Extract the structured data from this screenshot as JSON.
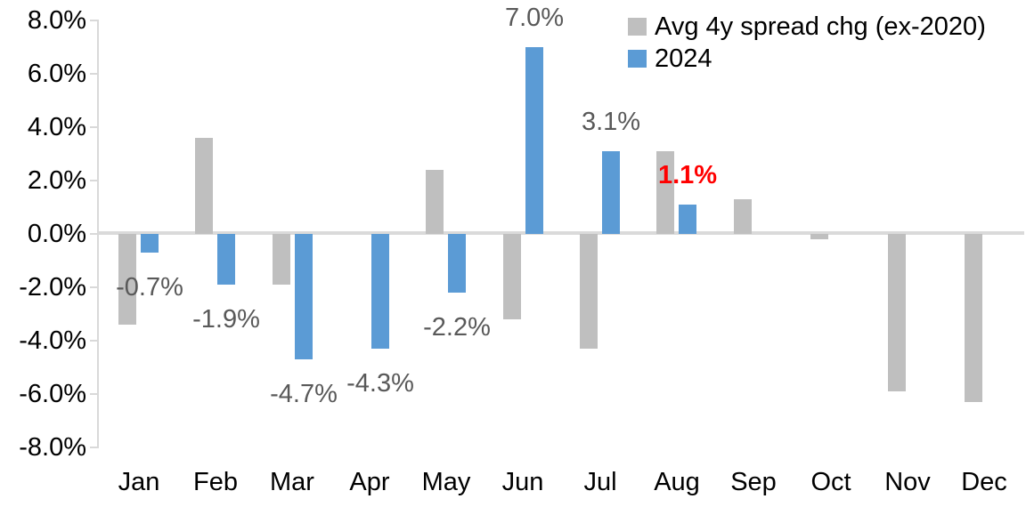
{
  "chart_data": {
    "type": "bar",
    "title": "",
    "xlabel": "",
    "ylabel": "",
    "categories": [
      "Jan",
      "Feb",
      "Mar",
      "Apr",
      "May",
      "Jun",
      "Jul",
      "Aug",
      "Sep",
      "Oct",
      "Nov",
      "Dec"
    ],
    "series": [
      {
        "name": "Avg 4y spread chg (ex-2020)",
        "color": "#bfbfbf",
        "values": [
          -3.4,
          3.6,
          -1.9,
          0.0,
          2.4,
          -3.2,
          -4.3,
          3.1,
          1.3,
          -0.2,
          -5.9,
          -6.3
        ]
      },
      {
        "name": "2024",
        "color": "#5b9bd5",
        "values": [
          -0.7,
          -1.9,
          -4.7,
          -4.3,
          -2.2,
          7.0,
          3.1,
          1.1,
          null,
          null,
          null,
          null
        ],
        "data_labels": [
          "-0.7%",
          "-1.9%",
          "-4.7%",
          "-4.3%",
          "-2.2%",
          "7.0%",
          "3.1%",
          "1.1%",
          null,
          null,
          null,
          null
        ],
        "highlight_index": 7
      }
    ],
    "ylim": [
      -8,
      8
    ],
    "y_tick_step": 2,
    "y_ticks": [
      "8.0%",
      "6.0%",
      "4.0%",
      "2.0%",
      "0.0%",
      "-2.0%",
      "-4.0%",
      "-6.0%",
      "-8.0%"
    ],
    "grid": false,
    "legend_position": "top-right"
  },
  "colors": {
    "axis_line": "#d9d9d9",
    "data_label": "#595959",
    "highlight_label": "#ff0000",
    "text": "#000000",
    "background": "#ffffff"
  },
  "legend": {
    "items": [
      {
        "label": "Avg 4y spread chg (ex-2020)",
        "color": "#bfbfbf"
      },
      {
        "label": "2024",
        "color": "#5b9bd5"
      }
    ]
  }
}
